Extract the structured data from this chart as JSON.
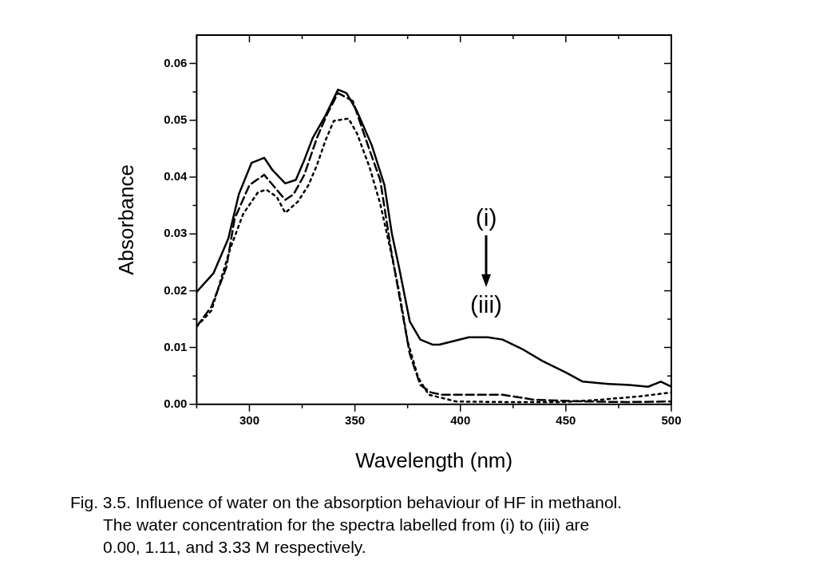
{
  "chart_data": {
    "type": "line",
    "xlabel": "Wavelength (nm)",
    "ylabel": "Absorbance",
    "xlim": [
      275,
      500
    ],
    "xticks": [
      {
        "value": 275,
        "label": null
      },
      300,
      {
        "value": 325,
        "label": null
      },
      350,
      {
        "value": 375,
        "label": null
      },
      400,
      {
        "value": 425,
        "label": null
      },
      450,
      {
        "value": 475,
        "label": null
      },
      500
    ],
    "ylim": [
      0,
      0.065
    ],
    "yticks": [
      {
        "value": 0,
        "label": "0.00"
      },
      {
        "value": 0.005,
        "label": null
      },
      {
        "value": 0.01,
        "label": "0.01"
      },
      {
        "value": 0.015,
        "label": null
      },
      {
        "value": 0.02,
        "label": "0.02"
      },
      {
        "value": 0.025,
        "label": null
      },
      {
        "value": 0.03,
        "label": "0.03"
      },
      {
        "value": 0.035,
        "label": null
      },
      {
        "value": 0.04,
        "label": "0.04"
      },
      {
        "value": 0.045,
        "label": null
      },
      {
        "value": 0.05,
        "label": "0.05"
      },
      {
        "value": 0.055,
        "label": null
      },
      {
        "value": 0.06,
        "label": "0.06"
      }
    ],
    "grid": false,
    "legend": false,
    "marker": "none",
    "series": [
      {
        "color": "#000000",
        "line_style": "solid",
        "x": [
          275,
          283,
          290,
          295,
          301,
          307,
          311,
          317,
          322,
          326,
          330,
          336,
          342,
          346,
          351,
          358,
          364,
          367.5,
          371,
          376,
          381,
          387,
          390,
          404,
          413,
          420,
          429,
          439,
          450,
          458,
          470,
          480,
          489,
          495,
          500
        ],
        "values": [
          0.0198,
          0.0231,
          0.0292,
          0.037,
          0.0425,
          0.0434,
          0.0412,
          0.0389,
          0.0395,
          0.043,
          0.0469,
          0.0508,
          0.0554,
          0.0548,
          0.0516,
          0.0456,
          0.0386,
          0.0301,
          0.024,
          0.0146,
          0.0114,
          0.0105,
          0.0105,
          0.0118,
          0.0118,
          0.0114,
          0.0098,
          0.0076,
          0.0056,
          0.004,
          0.0036,
          0.0034,
          0.0031,
          0.004,
          0.0031
        ]
      },
      {
        "color": "#000000",
        "line_style": "dashed",
        "x": [
          275,
          282,
          289,
          293,
          300,
          307,
          312,
          317,
          321,
          326,
          332,
          337,
          342,
          349,
          357,
          362,
          367,
          372,
          376,
          381,
          386,
          391,
          410,
          420,
          435,
          460,
          479,
          500
        ],
        "values": [
          0.0137,
          0.0172,
          0.024,
          0.0327,
          0.0386,
          0.0404,
          0.0382,
          0.036,
          0.037,
          0.0404,
          0.0469,
          0.0512,
          0.0548,
          0.0534,
          0.0447,
          0.0395,
          0.0275,
          0.0172,
          0.0089,
          0.0034,
          0.0021,
          0.0017,
          0.0017,
          0.0017,
          0.0008,
          0.0005,
          0.0004,
          0.0005
        ]
      },
      {
        "color": "#000000",
        "line_style": "dotted",
        "x": [
          275,
          282,
          291,
          297,
          304,
          308,
          313,
          317,
          323,
          328,
          332,
          336,
          340,
          347,
          351,
          357,
          362,
          367,
          371,
          375,
          380,
          385,
          398,
          423,
          448,
          466,
          485,
          500
        ],
        "values": [
          0.0137,
          0.0165,
          0.0275,
          0.0335,
          0.0373,
          0.0378,
          0.0365,
          0.0337,
          0.0357,
          0.0386,
          0.0421,
          0.0464,
          0.0499,
          0.0503,
          0.0477,
          0.0417,
          0.0353,
          0.027,
          0.0198,
          0.0111,
          0.0047,
          0.0017,
          0.0005,
          0.0004,
          0.0004,
          0.0008,
          0.0014,
          0.0021
        ]
      }
    ],
    "annotations": [
      "(i)",
      "(iii)",
      "Fig. 3.5. Influence of water on the absorption behaviour of HF in methanol.",
      "The water concentration for the spectra labelled from (i) to (iii) are",
      "0.00, 1.11, and 3.33 M respectively."
    ]
  }
}
